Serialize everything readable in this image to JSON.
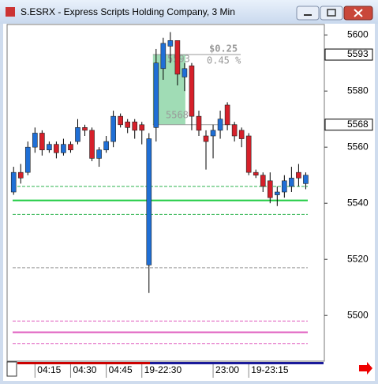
{
  "window": {
    "title": "S.ESRX - Express Scripts Holding Company, 3 Min"
  },
  "chart_data": {
    "type": "candlestick",
    "open": [
      5544,
      5551,
      5551,
      5560,
      5565,
      5559,
      5561,
      5558,
      5561,
      5562,
      5567,
      5566,
      5556,
      5559,
      5562,
      5571,
      5569,
      5569,
      5568,
      5518,
      5567,
      5588,
      5596,
      5598,
      5585,
      5589,
      5571,
      5564,
      5564,
      5566,
      5575,
      5568,
      5566,
      5564,
      5551,
      5550,
      5548,
      5543,
      5544,
      5546,
      5551,
      5547
    ],
    "high": [
      5553,
      5554,
      5562,
      5567,
      5566,
      5562,
      5562,
      5563,
      5562,
      5570,
      5568,
      5567,
      5560,
      5564,
      5573,
      5572,
      5570,
      5570,
      5569,
      5565,
      5595,
      5599,
      5601,
      5598,
      5590,
      5590,
      5573,
      5566,
      5568,
      5573,
      5576,
      5569,
      5567,
      5565,
      5552,
      5551,
      5551,
      5546,
      5550,
      5553,
      5554,
      5551
    ],
    "low": [
      5543,
      5547,
      5550,
      5558,
      5557,
      5558,
      5556,
      5557,
      5558,
      5561,
      5564,
      5555,
      5553,
      5558,
      5560,
      5567,
      5565,
      5563,
      5561,
      5508,
      5562,
      5584,
      5590,
      5582,
      5580,
      5566,
      5564,
      5552,
      5556,
      5563,
      5566,
      5562,
      5560,
      5550,
      5549,
      5544,
      5540,
      5539,
      5542,
      5544,
      5546,
      5545
    ],
    "close": [
      5551,
      5549,
      5560,
      5565,
      5559,
      5561,
      5558,
      5561,
      5559,
      5567,
      5566,
      5556,
      5559,
      5562,
      5571,
      5568,
      5567,
      5566,
      5566,
      5563,
      5590,
      5597,
      5598,
      5586,
      5588,
      5571,
      5566,
      5562,
      5566,
      5570,
      5568,
      5564,
      5563,
      5551,
      5550,
      5546,
      5542,
      5544,
      5548,
      5549,
      5549,
      5550
    ],
    "up_color": "#1f6fd6",
    "down_color": "#d6202a",
    "xlim": [
      -0.8,
      43.5
    ],
    "xticks": [
      {
        "value": 3,
        "label": "04:15"
      },
      {
        "value": 8,
        "label": "04:30"
      },
      {
        "value": 13,
        "label": "04:45"
      },
      {
        "value": 18,
        "label": "19-22:30"
      },
      {
        "value": 28,
        "label": "23:00"
      },
      {
        "value": 33,
        "label": "19-23:15"
      }
    ],
    "ylim": [
      5484,
      5604
    ],
    "yticks": [
      5500,
      5520,
      5540,
      5560,
      5580,
      5600
    ],
    "hlines": [
      {
        "value": 5546,
        "color": "#2bb24c",
        "style": "dashed"
      },
      {
        "value": 5541,
        "color": "#22cc44",
        "style": "solid"
      },
      {
        "value": 5536,
        "color": "#2bb24c",
        "style": "dashed"
      },
      {
        "value": 5517,
        "color": "#999999",
        "style": "dashed"
      },
      {
        "value": 5498,
        "color": "#e060c0",
        "style": "dashed"
      },
      {
        "value": 5494,
        "color": "#e060c0",
        "style": "solid"
      },
      {
        "value": 5490,
        "color": "#e060c0",
        "style": "dashed"
      }
    ],
    "price_labels": [
      5593,
      5568
    ],
    "measure": {
      "from_index": 20,
      "to_index": 23,
      "change_label": "$0.25",
      "percent_label": "0.45 %"
    }
  }
}
